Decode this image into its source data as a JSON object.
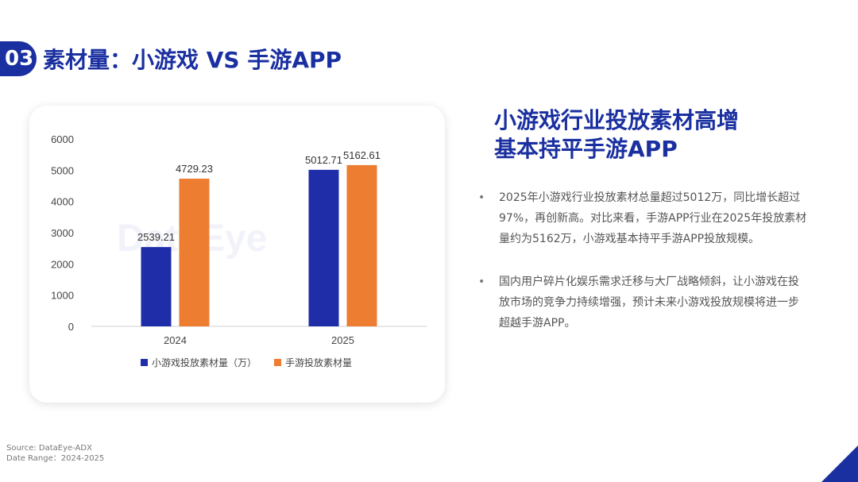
{
  "header": {
    "badge": "03",
    "title": "素材量：小游戏 VS 手游APP"
  },
  "right": {
    "title_lines": [
      "小游戏行业投放素材高增",
      "基本持平手游APP"
    ],
    "bullets": [
      "2025年小游戏行业投放素材总量超过5012万，同比增长超过97%，再创新高。对比来看，手游APP行业在2025年投放素材量约为5162万，小游戏基本持平手游APP投放规模。",
      "国内用户碎片化娱乐需求迁移与大厂战略倾斜，让小游戏在投放市场的竞争力持续增强，预计未来小游戏投放规模将进一步超越手游APP。"
    ],
    "bullet_symbol": "•"
  },
  "footer": {
    "source": "Source: DataEye-ADX",
    "date_range": "Date Range：2024-2025"
  },
  "colors": {
    "primary": "#1a2fa0",
    "orange": "#ed7d31",
    "blue_bar": "#1f2ea8"
  },
  "chart_data": {
    "type": "bar",
    "categories": [
      "2024",
      "2025"
    ],
    "series": [
      {
        "name": "小游戏投放素材量（万）",
        "values": [
          2539.21,
          5012.71
        ],
        "color": "#1f2ea8"
      },
      {
        "name": "手游投放素材量",
        "values": [
          4729.23,
          5162.61
        ],
        "color": "#ed7d31"
      }
    ],
    "data_labels": [
      [
        "2539.21",
        "5012.71"
      ],
      [
        "4729.23",
        "5162.61"
      ]
    ],
    "yticks": [
      0,
      1000,
      2000,
      3000,
      4000,
      5000,
      6000
    ],
    "ylim": [
      0,
      6000
    ],
    "grid": false,
    "legend_position": "bottom",
    "watermark": "DataEye"
  }
}
